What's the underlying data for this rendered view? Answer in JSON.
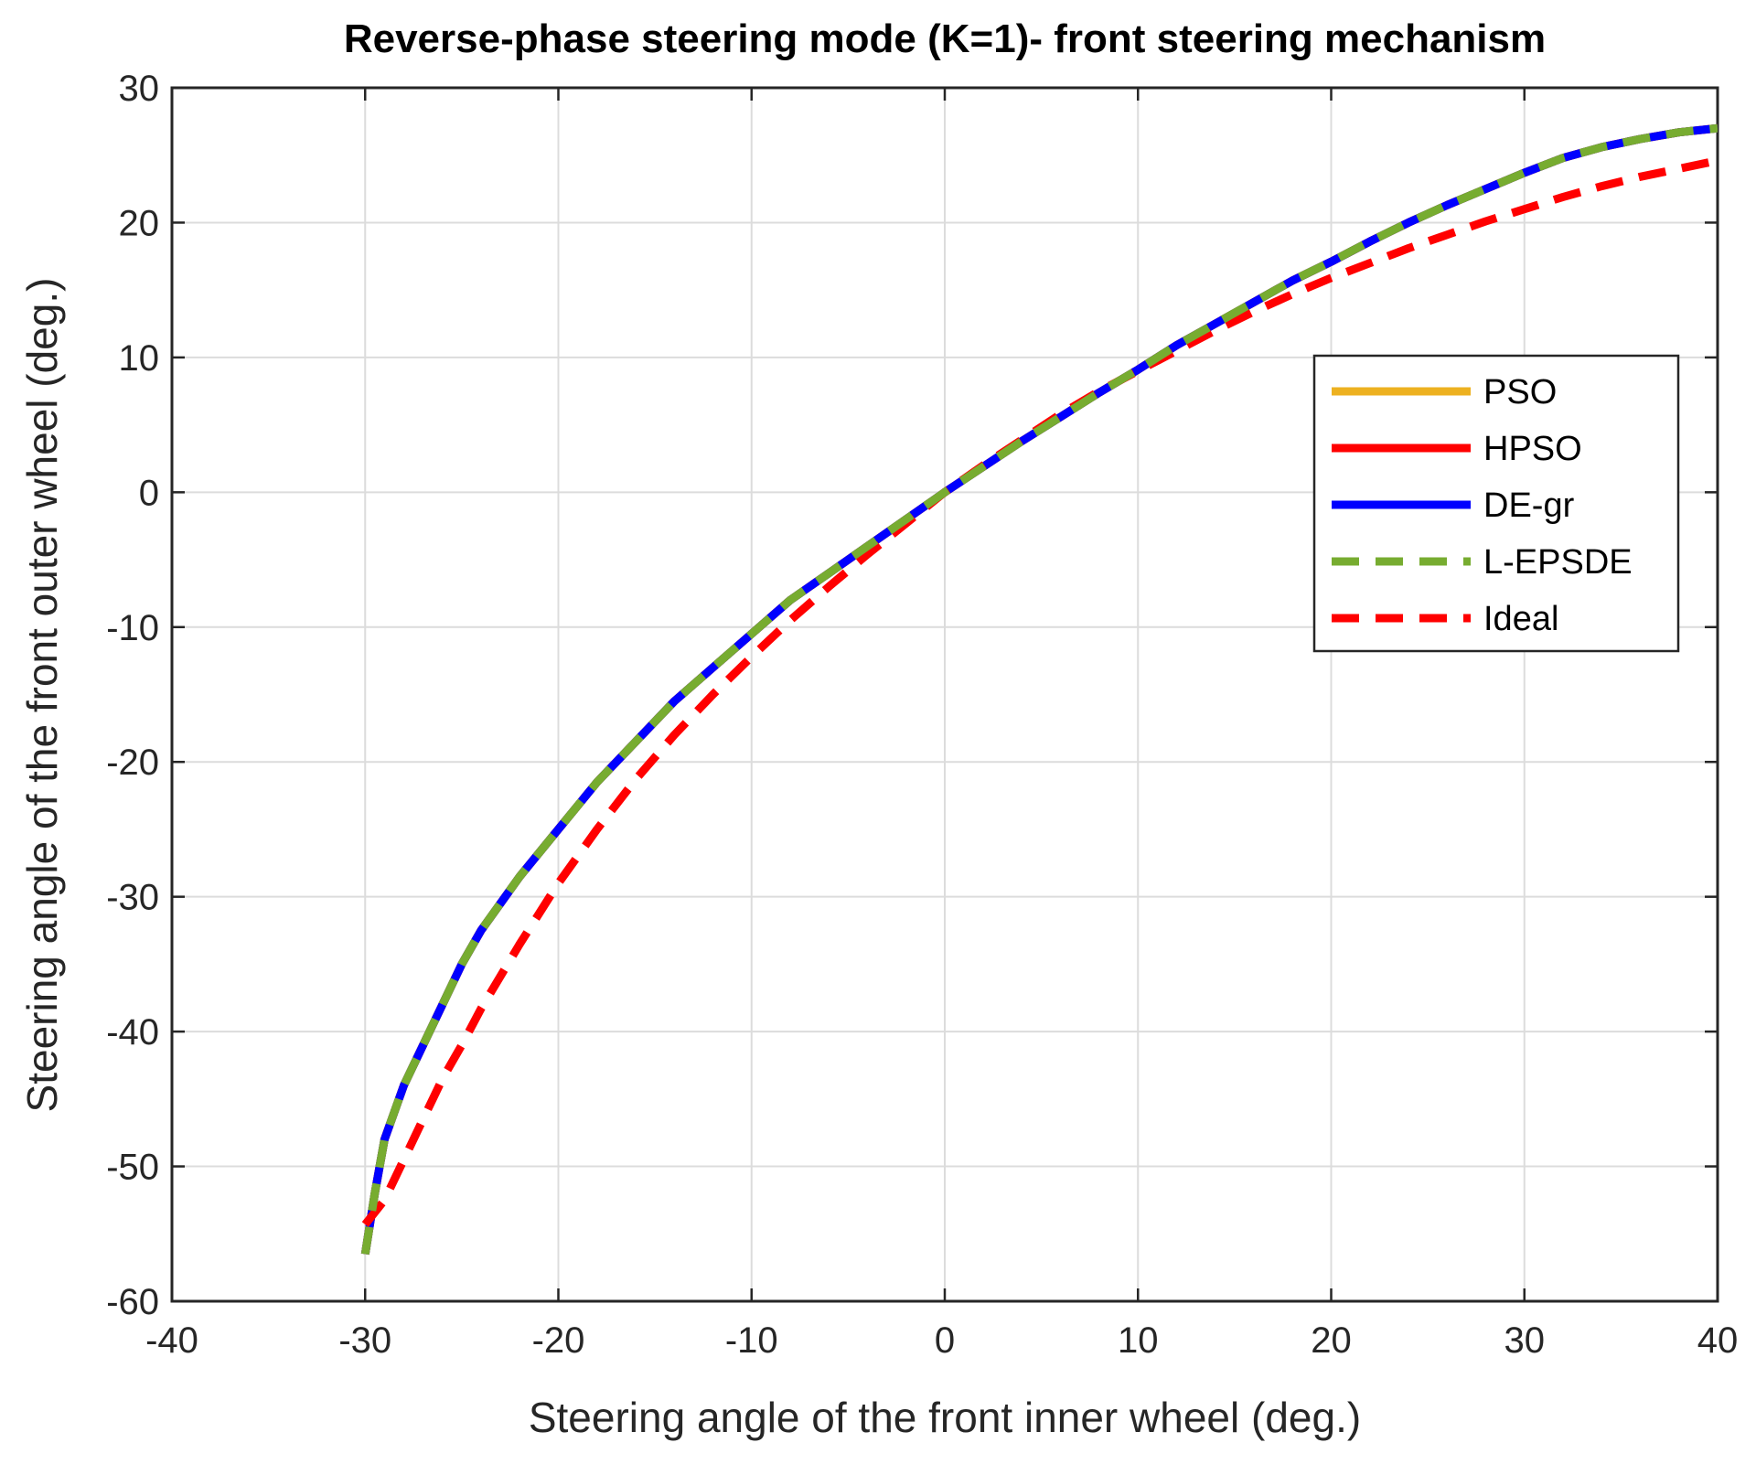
{
  "chart_data": {
    "type": "line",
    "title": "Reverse-phase steering mode (K=1)- front steering mechanism",
    "xlabel": "Steering angle of the front inner wheel (deg.)",
    "ylabel": "Steering angle of the front outer wheel (deg.)",
    "xlim": [
      -40,
      40
    ],
    "ylim": [
      -60,
      30
    ],
    "xticks": [
      -40,
      -30,
      -20,
      -10,
      0,
      10,
      20,
      30,
      40
    ],
    "yticks": [
      -60,
      -50,
      -40,
      -30,
      -20,
      -10,
      0,
      10,
      20,
      30
    ],
    "xtick_labels": [
      "-40",
      "-30",
      "-20",
      "-10",
      "0",
      "10",
      "20",
      "30",
      "40"
    ],
    "ytick_labels": [
      "-60",
      "-50",
      "-40",
      "-30",
      "-20",
      "-10",
      "0",
      "10",
      "20",
      "30"
    ],
    "grid": true,
    "legend_position": "upper-right",
    "series": [
      {
        "name": "PSO",
        "color": "#EDB120",
        "style": "solid",
        "x": [
          -30,
          -29.5,
          -29,
          -28,
          -27,
          -26,
          -25,
          -24,
          -22,
          -20,
          -18,
          -16,
          -14,
          -12,
          -10,
          -8,
          -6,
          -4,
          -2,
          0,
          2,
          4,
          6,
          8,
          10,
          12,
          14,
          16,
          18,
          20,
          22,
          24,
          26,
          28,
          30,
          32,
          34,
          36,
          38,
          40
        ],
        "y": [
          -56.5,
          -52,
          -48,
          -44,
          -41,
          -38,
          -35,
          -32.5,
          -28.5,
          -25,
          -21.5,
          -18.5,
          -15.5,
          -13,
          -10.5,
          -8,
          -6,
          -4,
          -2,
          0,
          1.9,
          3.8,
          5.6,
          7.4,
          9.1,
          10.9,
          12.5,
          14.1,
          15.7,
          17.1,
          18.6,
          20,
          21.3,
          22.5,
          23.7,
          24.8,
          25.6,
          26.2,
          26.7,
          27
        ]
      },
      {
        "name": "HPSO",
        "color": "#FF0000",
        "style": "solid",
        "x": [
          -30,
          -29.5,
          -29,
          -28,
          -27,
          -26,
          -25,
          -24,
          -22,
          -20,
          -18,
          -16,
          -14,
          -12,
          -10,
          -8,
          -6,
          -4,
          -2,
          0,
          2,
          4,
          6,
          8,
          10,
          12,
          14,
          16,
          18,
          20,
          22,
          24,
          26,
          28,
          30,
          32,
          34,
          36,
          38,
          40
        ],
        "y": [
          -56.5,
          -52,
          -48,
          -44,
          -41,
          -38,
          -35,
          -32.5,
          -28.5,
          -25,
          -21.5,
          -18.5,
          -15.5,
          -13,
          -10.5,
          -8,
          -6,
          -4,
          -2,
          0,
          1.9,
          3.8,
          5.6,
          7.4,
          9.1,
          10.9,
          12.5,
          14.1,
          15.7,
          17.1,
          18.6,
          20,
          21.3,
          22.5,
          23.7,
          24.8,
          25.6,
          26.2,
          26.7,
          27
        ]
      },
      {
        "name": "DE-gr",
        "color": "#0000FF",
        "style": "solid",
        "x": [
          -30,
          -29.5,
          -29,
          -28,
          -27,
          -26,
          -25,
          -24,
          -22,
          -20,
          -18,
          -16,
          -14,
          -12,
          -10,
          -8,
          -6,
          -4,
          -2,
          0,
          2,
          4,
          6,
          8,
          10,
          12,
          14,
          16,
          18,
          20,
          22,
          24,
          26,
          28,
          30,
          32,
          34,
          36,
          38,
          40
        ],
        "y": [
          -56.5,
          -52,
          -48,
          -44,
          -41,
          -38,
          -35,
          -32.5,
          -28.5,
          -25,
          -21.5,
          -18.5,
          -15.5,
          -13,
          -10.5,
          -8,
          -6,
          -4,
          -2,
          0,
          1.9,
          3.8,
          5.6,
          7.4,
          9.1,
          10.9,
          12.5,
          14.1,
          15.7,
          17.1,
          18.6,
          20,
          21.3,
          22.5,
          23.7,
          24.8,
          25.6,
          26.2,
          26.7,
          27
        ]
      },
      {
        "name": "L-EPSDE",
        "color": "#77AC30",
        "style": "dashed",
        "x": [
          -30,
          -29.5,
          -29,
          -28,
          -27,
          -26,
          -25,
          -24,
          -22,
          -20,
          -18,
          -16,
          -14,
          -12,
          -10,
          -8,
          -6,
          -4,
          -2,
          0,
          2,
          4,
          6,
          8,
          10,
          12,
          14,
          16,
          18,
          20,
          22,
          24,
          26,
          28,
          30,
          32,
          34,
          36,
          38,
          40
        ],
        "y": [
          -56.5,
          -52,
          -48,
          -44,
          -41,
          -38,
          -35,
          -32.5,
          -28.5,
          -25,
          -21.5,
          -18.5,
          -15.5,
          -13,
          -10.5,
          -8,
          -6,
          -4,
          -2,
          0,
          1.9,
          3.8,
          5.6,
          7.4,
          9.1,
          10.9,
          12.5,
          14.1,
          15.7,
          17.1,
          18.6,
          20,
          21.3,
          22.5,
          23.7,
          24.8,
          25.6,
          26.2,
          26.7,
          27
        ]
      },
      {
        "name": "Ideal",
        "color": "#FF0000",
        "style": "dashed",
        "x": [
          -30,
          -29,
          -28,
          -27,
          -26,
          -25,
          -24,
          -22,
          -20,
          -18,
          -16,
          -14,
          -12,
          -10,
          -8,
          -6,
          -4,
          -2,
          0,
          2,
          4,
          6,
          8,
          10,
          12,
          14,
          16,
          18,
          20,
          22,
          24,
          26,
          28,
          30,
          32,
          34,
          36,
          38,
          40
        ],
        "y": [
          -54.3,
          -52.5,
          -49.5,
          -46.5,
          -43.5,
          -41,
          -38.3,
          -33.5,
          -29,
          -25,
          -21.3,
          -18,
          -15,
          -12.2,
          -9.5,
          -7,
          -4.6,
          -2.3,
          0,
          2,
          3.9,
          5.8,
          7.5,
          9,
          10.5,
          12,
          13.4,
          14.7,
          15.9,
          17,
          18.1,
          19.1,
          20.1,
          21,
          21.9,
          22.7,
          23.4,
          24,
          24.6
        ]
      }
    ]
  }
}
